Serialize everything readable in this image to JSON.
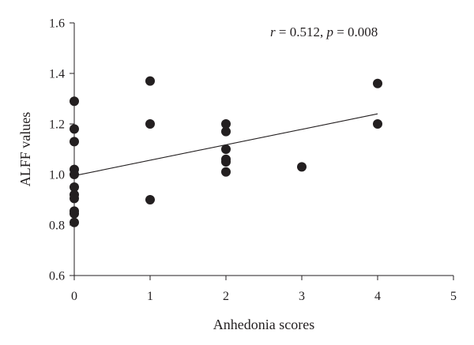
{
  "chart_data": {
    "type": "scatter",
    "xlabel": "Anhedonia scores",
    "ylabel": "ALFF values",
    "xlim": [
      0,
      5
    ],
    "ylim": [
      0.6,
      1.6
    ],
    "x_ticks": [
      "0",
      "1",
      "2",
      "3",
      "4",
      "5"
    ],
    "y_ticks": [
      "0.6",
      "0.8",
      "1.0",
      "1.2",
      "1.4",
      "1.6"
    ],
    "annotation": {
      "r_symbol": "r",
      "r_value": " = 0.512, ",
      "p_symbol": "p",
      "p_value": " = 0.008"
    },
    "grid": false,
    "legend": "none",
    "points": [
      {
        "x": 0,
        "y": 1.29
      },
      {
        "x": 0,
        "y": 1.18
      },
      {
        "x": 0,
        "y": 1.13
      },
      {
        "x": 0,
        "y": 1.02
      },
      {
        "x": 0,
        "y": 1.0
      },
      {
        "x": 0,
        "y": 0.95
      },
      {
        "x": 0,
        "y": 0.92
      },
      {
        "x": 0,
        "y": 0.905
      },
      {
        "x": 0,
        "y": 0.855
      },
      {
        "x": 0,
        "y": 0.845
      },
      {
        "x": 0,
        "y": 0.81
      },
      {
        "x": 1,
        "y": 1.37
      },
      {
        "x": 1,
        "y": 1.2
      },
      {
        "x": 1,
        "y": 0.9
      },
      {
        "x": 2,
        "y": 1.2
      },
      {
        "x": 2,
        "y": 1.17
      },
      {
        "x": 2,
        "y": 1.1
      },
      {
        "x": 2,
        "y": 1.06
      },
      {
        "x": 2,
        "y": 1.05
      },
      {
        "x": 2,
        "y": 1.01
      },
      {
        "x": 3,
        "y": 1.03
      },
      {
        "x": 4,
        "y": 1.36
      },
      {
        "x": 4,
        "y": 1.2
      }
    ],
    "fit_line": {
      "x": [
        0,
        4
      ],
      "y": [
        0.995,
        1.24
      ]
    },
    "colors": {
      "marks": "#231f20",
      "background": "#ffffff"
    }
  }
}
